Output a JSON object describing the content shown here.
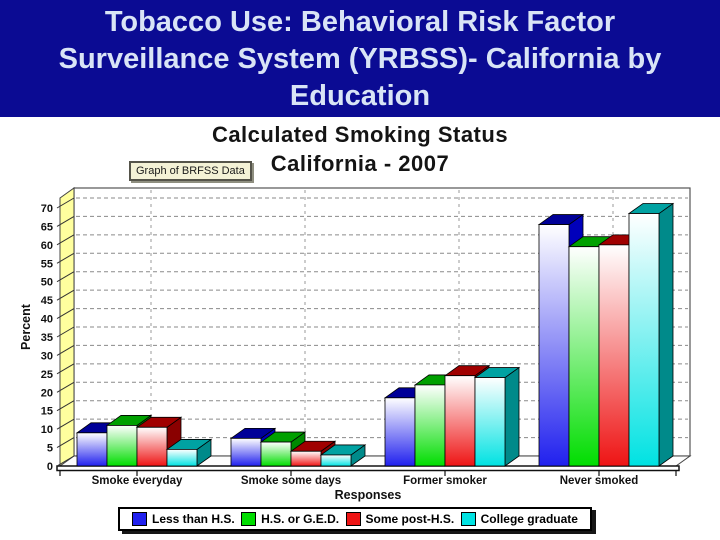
{
  "slide": {
    "title": "Tobacco Use: Behavioral Risk Factor Surveillance System (YRBSS)- California by Education",
    "background_color": "#0b0b93",
    "title_text_color": "#d9e4f6"
  },
  "chart": {
    "title": "Calculated Smoking Status",
    "subtitle": "California - 2007",
    "source_label": "Graph of BRFSS Data"
  },
  "chart_data": {
    "type": "bar",
    "title": "Calculated Smoking Status",
    "subtitle": "California - 2007",
    "xlabel": "Responses",
    "ylabel": "Percent",
    "ylim": [
      0,
      70
    ],
    "ytick_step": 5,
    "grid": true,
    "style": "3d-bars",
    "legend_position": "bottom",
    "wall_color": "#ffff9e",
    "categories": [
      "Smoke everyday",
      "Smoke some days",
      "Former smoker",
      "Never smoked"
    ],
    "series": [
      {
        "name": "Less than H.S.",
        "values": [
          9,
          7.5,
          18.5,
          65.5
        ],
        "color": "#2020ee",
        "top_color": "#000098",
        "side_color": "#0000bb"
      },
      {
        "name": "H.S. or G.E.D.",
        "values": [
          11,
          6.5,
          22,
          59.5
        ],
        "color": "#00dd00",
        "top_color": "#00a000",
        "side_color": "#008a00"
      },
      {
        "name": "Some post-H.S.",
        "values": [
          10.5,
          4,
          24.5,
          60
        ],
        "color": "#ee1414",
        "top_color": "#a00000",
        "side_color": "#8a0000"
      },
      {
        "name": "College graduate",
        "values": [
          4.5,
          3,
          24,
          68.5
        ],
        "color": "#00e2e2",
        "top_color": "#00a2a2",
        "side_color": "#008a8a"
      }
    ]
  }
}
